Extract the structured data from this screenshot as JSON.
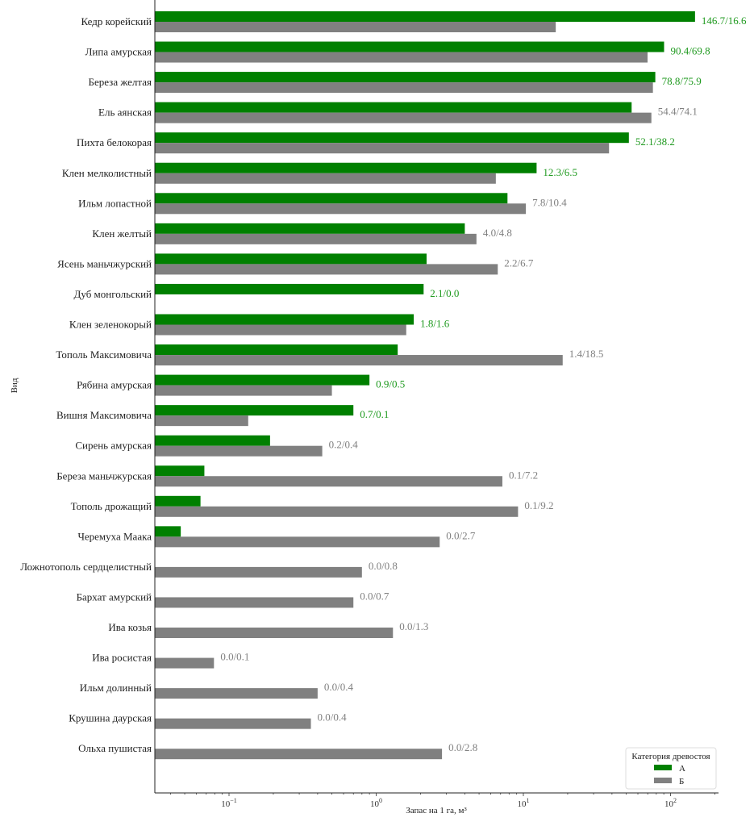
{
  "chart_data": {
    "type": "bar",
    "orientation": "horizontal",
    "xscale": "log",
    "xlabel": "Запас на 1 га, м³",
    "ylabel": "Вид",
    "xlim": [
      0.031,
      214
    ],
    "xticks": [
      {
        "value": 0.1,
        "base": "10",
        "exp": "−1"
      },
      {
        "value": 1,
        "base": "10",
        "exp": "0"
      },
      {
        "value": 10,
        "base": "10",
        "exp": "1"
      },
      {
        "value": 100,
        "base": "10",
        "exp": "2"
      }
    ],
    "legend": {
      "title": "Категория древостоя",
      "placement": "bottom-right",
      "entries": [
        "А",
        "Б"
      ]
    },
    "colors": {
      "A": "#008000",
      "B": "#808080",
      "label_A_greater": "#1f9a1f",
      "label_other": "#808080"
    },
    "categories": [
      "Кедр корейский",
      "Липа амурская",
      "Береза желтая",
      "Ель аянская",
      "Пихта белокорая",
      "Клен мелколистный",
      "Ильм лопастной",
      "Клен желтый",
      "Ясень маньчжурский",
      "Дуб монгольский",
      "Клен зеленокорый",
      "Тополь Максимовича",
      "Рябина амурская",
      "Вишня Максимовича",
      "Сирень амурская",
      "Береза маньчжурская",
      "Тополь дрожащий",
      "Черемуха Маака",
      "Ложнотополь сердцелистный",
      "Бархат амурский",
      "Ива козья",
      "Ива росистая",
      "Ильм долинный",
      "Крушина даурская",
      "Ольха пушистая"
    ],
    "series": [
      {
        "name": "А",
        "values": [
          146.7,
          90.4,
          78.8,
          54.4,
          52.1,
          12.3,
          7.8,
          4.0,
          2.2,
          2.1,
          1.8,
          1.4,
          0.9,
          0.7,
          0.19,
          0.068,
          0.064,
          0.047,
          0,
          0,
          0,
          0,
          0,
          0,
          0
        ]
      },
      {
        "name": "Б",
        "values": [
          16.6,
          69.8,
          75.9,
          74.1,
          38.2,
          6.5,
          10.4,
          4.8,
          6.7,
          0,
          1.6,
          18.5,
          0.5,
          0.135,
          0.43,
          7.2,
          9.2,
          2.7,
          0.8,
          0.7,
          1.3,
          0.079,
          0.4,
          0.36,
          2.8
        ]
      }
    ],
    "data_labels": [
      "146.7/16.6",
      "90.4/69.8",
      "78.8/75.9",
      "54.4/74.1",
      "52.1/38.2",
      "12.3/6.5",
      "7.8/10.4",
      "4.0/4.8",
      "2.2/6.7",
      "2.1/0.0",
      "1.8/1.6",
      "1.4/18.5",
      "0.9/0.5",
      "0.7/0.1",
      "0.2/0.4",
      "0.1/7.2",
      "0.1/9.2",
      "0.0/2.7",
      "0.0/0.8",
      "0.0/0.7",
      "0.0/1.3",
      "0.0/0.1",
      "0.0/0.4",
      "0.0/0.4",
      "0.0/2.8"
    ]
  }
}
